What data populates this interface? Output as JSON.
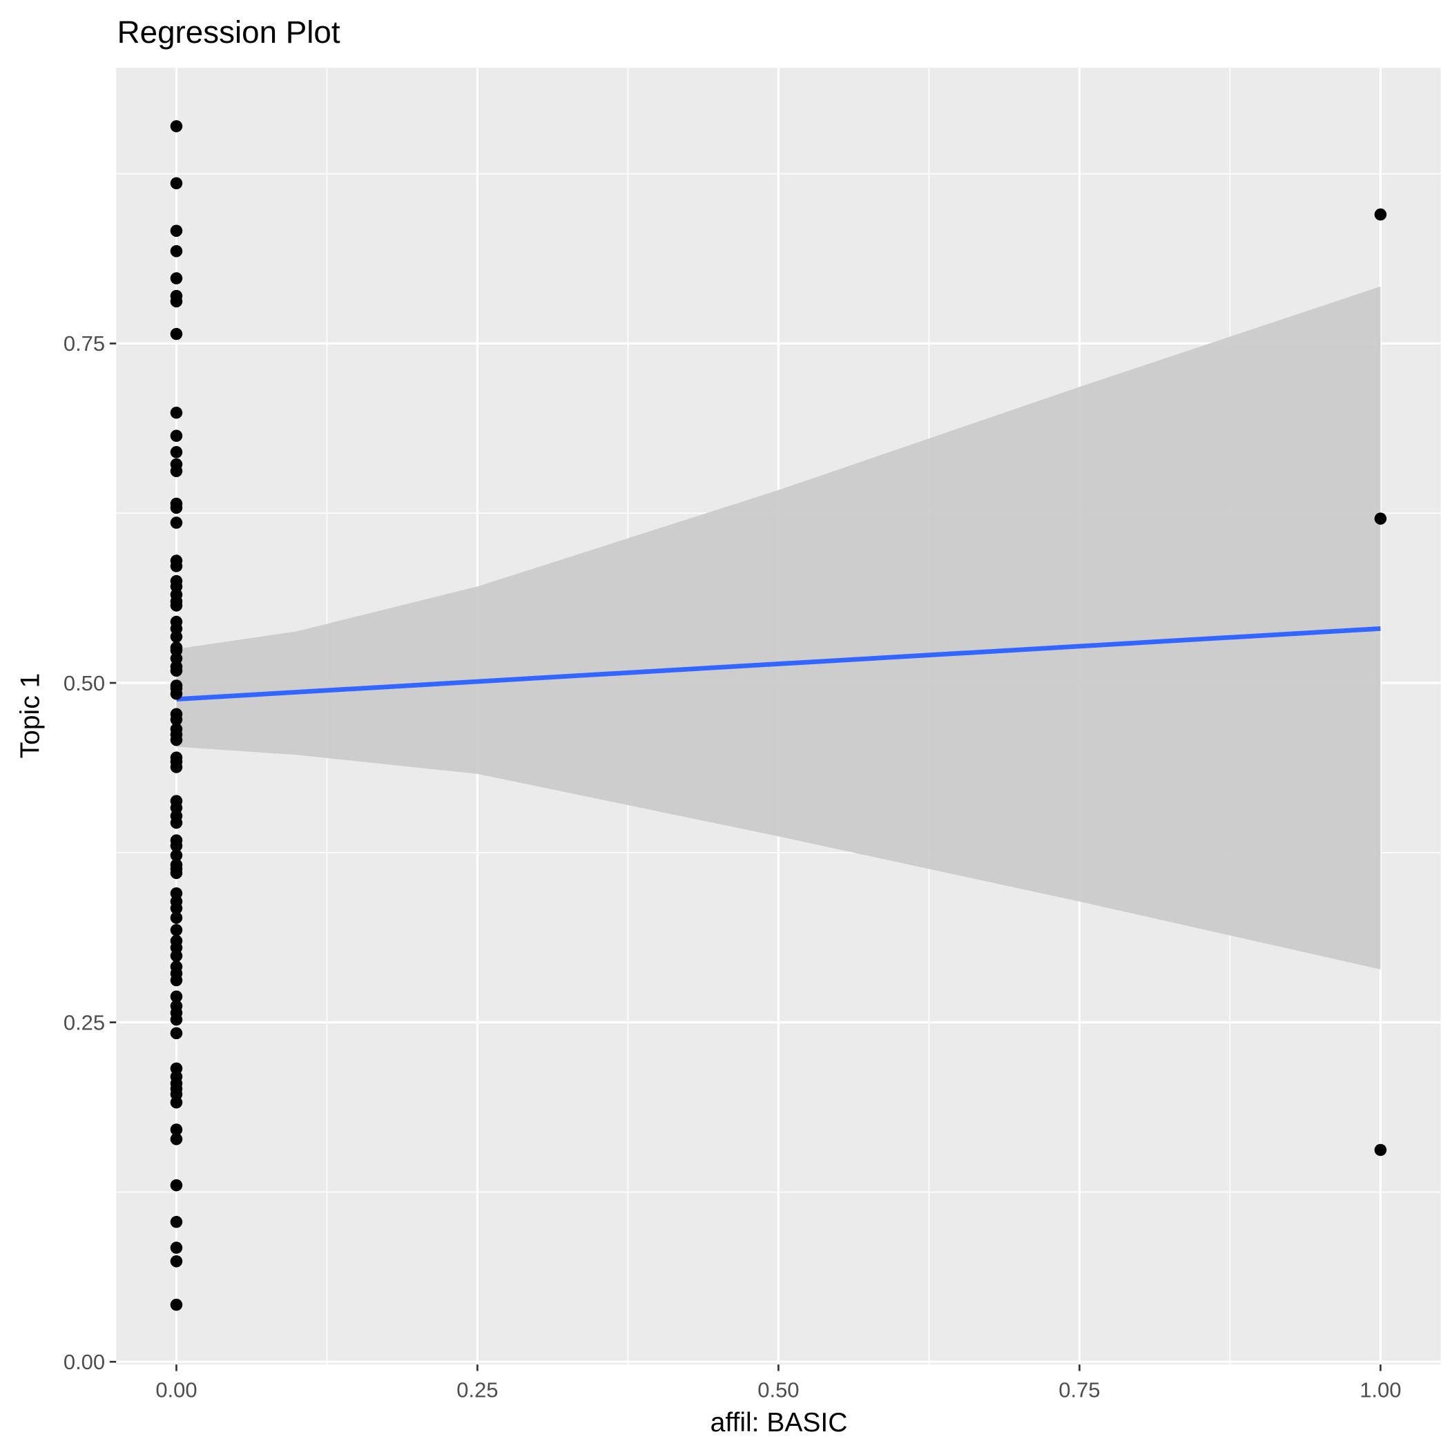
{
  "chart_data": {
    "type": "scatter",
    "title": "Regression Plot",
    "xlabel": "affil: BASIC",
    "ylabel": "Topic 1",
    "xlim": [
      -0.05,
      1.05
    ],
    "ylim": [
      -0.002,
      0.953
    ],
    "grid": true,
    "x_ticks": [
      0,
      0.25,
      0.5,
      0.75,
      1.0
    ],
    "x_tick_labels": [
      "0.00",
      "0.25",
      "0.50",
      "0.75",
      "1.00"
    ],
    "y_ticks": [
      0,
      0.25,
      0.5,
      0.75
    ],
    "y_tick_labels": [
      "0.00",
      "0.25",
      "0.50",
      "0.75"
    ],
    "points_x0": [
      0.91,
      0.868,
      0.833,
      0.818,
      0.798,
      0.785,
      0.781,
      0.757,
      0.699,
      0.682,
      0.67,
      0.661,
      0.656,
      0.632,
      0.629,
      0.618,
      0.59,
      0.586,
      0.575,
      0.571,
      0.565,
      0.56,
      0.557,
      0.545,
      0.54,
      0.534,
      0.526,
      0.524,
      0.518,
      0.512,
      0.509,
      0.498,
      0.496,
      0.492,
      0.477,
      0.473,
      0.466,
      0.462,
      0.458,
      0.445,
      0.442,
      0.438,
      0.413,
      0.408,
      0.402,
      0.397,
      0.384,
      0.38,
      0.373,
      0.366,
      0.363,
      0.36,
      0.345,
      0.339,
      0.334,
      0.327,
      0.318,
      0.31,
      0.305,
      0.299,
      0.291,
      0.286,
      0.281,
      0.269,
      0.262,
      0.257,
      0.252,
      0.242,
      0.216,
      0.21,
      0.205,
      0.201,
      0.197,
      0.191,
      0.171,
      0.164,
      0.13,
      0.103,
      0.084,
      0.074,
      0.042
    ],
    "points_x1": [
      0.845,
      0.621,
      0.156
    ],
    "fit_line": {
      "x": [
        0,
        1
      ],
      "y": [
        0.488,
        0.54
      ],
      "color": "#3366FF"
    },
    "confidence_band": {
      "x": [
        0,
        0.1,
        0.25,
        0.5,
        0.75,
        1.0
      ],
      "upper": [
        0.525,
        0.538,
        0.571,
        0.642,
        0.718,
        0.792
      ],
      "lower": [
        0.453,
        0.447,
        0.433,
        0.387,
        0.339,
        0.289
      ],
      "color": "#CBCBCB"
    },
    "panel_background": "#EBEBEB"
  }
}
